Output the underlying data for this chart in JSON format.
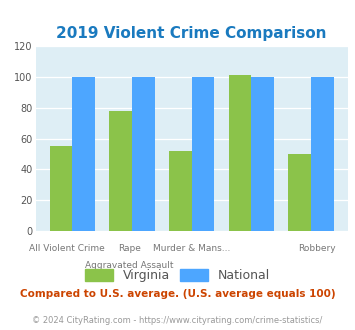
{
  "title": "2019 Violent Crime Comparison",
  "title_color": "#1a7abf",
  "virginia_values": [
    55,
    78,
    52,
    101,
    50
  ],
  "national_values": [
    100,
    100,
    100,
    100,
    100
  ],
  "virginia_color": "#8bc34a",
  "national_color": "#4da6ff",
  "ylim": [
    0,
    120
  ],
  "yticks": [
    0,
    20,
    40,
    60,
    80,
    100,
    120
  ],
  "bg_color": "#deeef5",
  "line1_labels": [
    "All Violent Crime",
    "Rape",
    "Murder & Mans...",
    "",
    "Robbery"
  ],
  "line2_labels": [
    "",
    "Aggravated Assault",
    "",
    "",
    ""
  ],
  "legend_virginia": "Virginia",
  "legend_national": "National",
  "footnote1": "Compared to U.S. average. (U.S. average equals 100)",
  "footnote2": "© 2024 CityRating.com - https://www.cityrating.com/crime-statistics/",
  "footnote1_color": "#cc4400",
  "footnote2_color": "#999999",
  "title_fontsize": 11,
  "tick_label_fontsize": 6.5,
  "legend_fontsize": 9,
  "footnote1_fontsize": 7.5,
  "footnote2_fontsize": 6.0
}
